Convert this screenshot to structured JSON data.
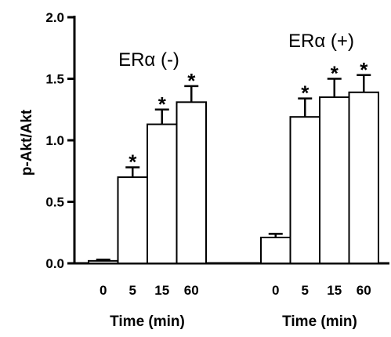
{
  "chart_data": {
    "type": "bar",
    "ylabel": "p-Akt/Akt",
    "ylim": [
      0,
      2.0
    ],
    "yticks": [
      "0.0",
      "0.5",
      "1.0",
      "1.5",
      "2.0"
    ],
    "groups": [
      {
        "title": "ERα (-)",
        "xlabel": "Time (min)",
        "categories": [
          "0",
          "5",
          "15",
          "60"
        ],
        "values": [
          0.02,
          0.7,
          1.13,
          1.31
        ],
        "errors": [
          0.01,
          0.08,
          0.12,
          0.13
        ],
        "significance": [
          "",
          "*",
          "*",
          "*"
        ]
      },
      {
        "title": "ERα (+)",
        "xlabel": "Time (min)",
        "categories": [
          "0",
          "5",
          "15",
          "60"
        ],
        "values": [
          0.21,
          1.19,
          1.35,
          1.39
        ],
        "errors": [
          0.03,
          0.15,
          0.15,
          0.14
        ],
        "significance": [
          "",
          "*",
          "*",
          "*"
        ]
      }
    ],
    "grid": false,
    "bar_color": "#ffffff",
    "edge_color": "#000000"
  }
}
